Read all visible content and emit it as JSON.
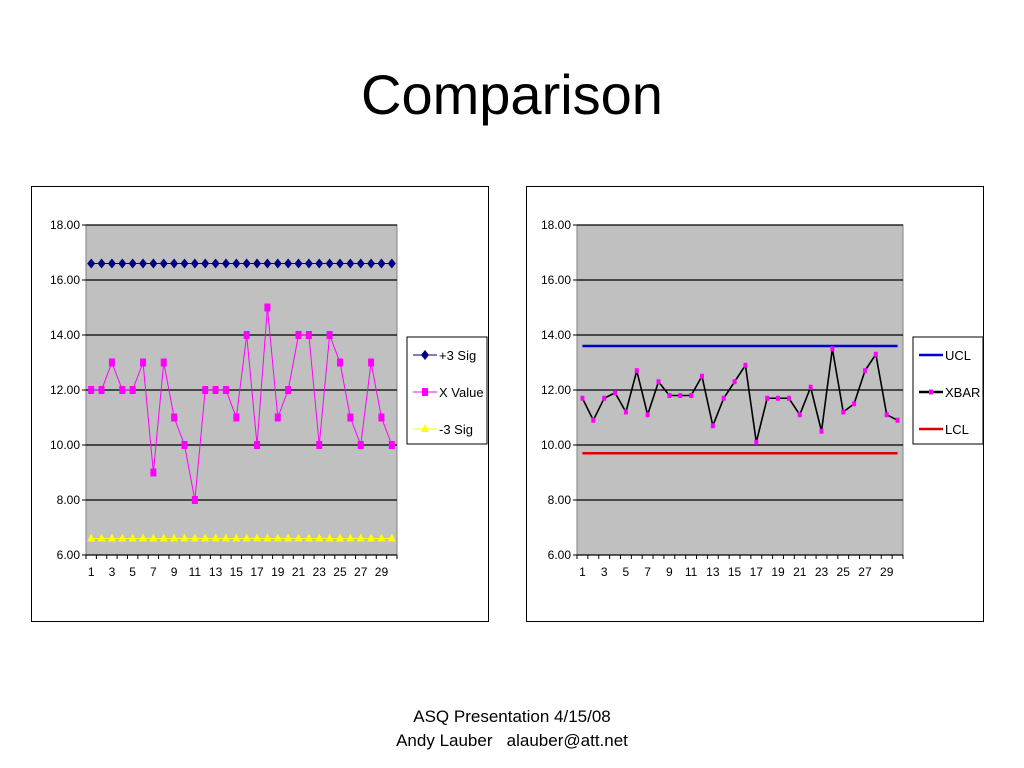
{
  "slide": {
    "title": "Comparison",
    "footer_line1": "ASQ Presentation 4/15/08",
    "footer_line2": "Andy Lauber   alauber@att.net"
  },
  "chart_data": [
    {
      "type": "line",
      "ylim": [
        6,
        18
      ],
      "y_ticks": [
        "6.00",
        "8.00",
        "10.00",
        "12.00",
        "14.00",
        "16.00",
        "18.00"
      ],
      "x": [
        1,
        2,
        3,
        4,
        5,
        6,
        7,
        8,
        9,
        10,
        11,
        12,
        13,
        14,
        15,
        16,
        17,
        18,
        19,
        20,
        21,
        22,
        23,
        24,
        25,
        26,
        27,
        28,
        29,
        30
      ],
      "x_tick_labels": [
        "1",
        "3",
        "5",
        "7",
        "9",
        "11",
        "13",
        "15",
        "17",
        "19",
        "21",
        "23",
        "25",
        "27",
        "29"
      ],
      "grid": true,
      "legend_position": "right",
      "plot_background": "#c0c0c0",
      "series": [
        {
          "name": "+3 Sig",
          "marker": "diamond",
          "color": "#000080",
          "values": [
            16.6,
            16.6,
            16.6,
            16.6,
            16.6,
            16.6,
            16.6,
            16.6,
            16.6,
            16.6,
            16.6,
            16.6,
            16.6,
            16.6,
            16.6,
            16.6,
            16.6,
            16.6,
            16.6,
            16.6,
            16.6,
            16.6,
            16.6,
            16.6,
            16.6,
            16.6,
            16.6,
            16.6,
            16.6,
            16.6
          ]
        },
        {
          "name": "X Value",
          "marker": "square",
          "color": "#ff00ff",
          "values": [
            12,
            12,
            13,
            12,
            12,
            13,
            9,
            13,
            11,
            10,
            8,
            12,
            12,
            12,
            11,
            14,
            10,
            15,
            11,
            12,
            14,
            14,
            10,
            14,
            13,
            11,
            10,
            13,
            11,
            10
          ]
        },
        {
          "name": "-3 Sig",
          "marker": "triangle",
          "color": "#ffff00",
          "values": [
            6.6,
            6.6,
            6.6,
            6.6,
            6.6,
            6.6,
            6.6,
            6.6,
            6.6,
            6.6,
            6.6,
            6.6,
            6.6,
            6.6,
            6.6,
            6.6,
            6.6,
            6.6,
            6.6,
            6.6,
            6.6,
            6.6,
            6.6,
            6.6,
            6.6,
            6.6,
            6.6,
            6.6,
            6.6,
            6.6
          ]
        }
      ]
    },
    {
      "type": "line",
      "ylim": [
        6,
        18
      ],
      "y_ticks": [
        "6.00",
        "8.00",
        "10.00",
        "12.00",
        "14.00",
        "16.00",
        "18.00"
      ],
      "x": [
        1,
        2,
        3,
        4,
        5,
        6,
        7,
        8,
        9,
        10,
        11,
        12,
        13,
        14,
        15,
        16,
        17,
        18,
        19,
        20,
        21,
        22,
        23,
        24,
        25,
        26,
        27,
        28,
        29,
        30
      ],
      "x_tick_labels": [
        "1",
        "3",
        "5",
        "7",
        "9",
        "11",
        "13",
        "15",
        "17",
        "19",
        "21",
        "23",
        "25",
        "27",
        "29"
      ],
      "grid": true,
      "legend_position": "right",
      "plot_background": "#c0c0c0",
      "series": [
        {
          "name": "UCL",
          "marker": "none",
          "color": "#0000cc",
          "values": [
            13.6,
            13.6,
            13.6,
            13.6,
            13.6,
            13.6,
            13.6,
            13.6,
            13.6,
            13.6,
            13.6,
            13.6,
            13.6,
            13.6,
            13.6,
            13.6,
            13.6,
            13.6,
            13.6,
            13.6,
            13.6,
            13.6,
            13.6,
            13.6,
            13.6,
            13.6,
            13.6,
            13.6,
            13.6,
            13.6
          ]
        },
        {
          "name": "XBAR",
          "marker": "dot",
          "color": "#000000",
          "marker_color": "#ff00ff",
          "values": [
            11.7,
            10.9,
            11.7,
            11.9,
            11.2,
            12.7,
            11.1,
            12.3,
            11.8,
            11.8,
            11.8,
            12.5,
            10.7,
            11.7,
            12.3,
            12.9,
            10.1,
            11.7,
            11.7,
            11.7,
            11.1,
            12.1,
            10.5,
            13.5,
            11.2,
            11.5,
            12.7,
            13.3,
            11.1,
            10.9
          ]
        },
        {
          "name": "LCL",
          "marker": "none",
          "color": "#dd0000",
          "values": [
            9.7,
            9.7,
            9.7,
            9.7,
            9.7,
            9.7,
            9.7,
            9.7,
            9.7,
            9.7,
            9.7,
            9.7,
            9.7,
            9.7,
            9.7,
            9.7,
            9.7,
            9.7,
            9.7,
            9.7,
            9.7,
            9.7,
            9.7,
            9.7,
            9.7,
            9.7,
            9.7,
            9.7,
            9.7,
            9.7
          ]
        }
      ]
    }
  ]
}
